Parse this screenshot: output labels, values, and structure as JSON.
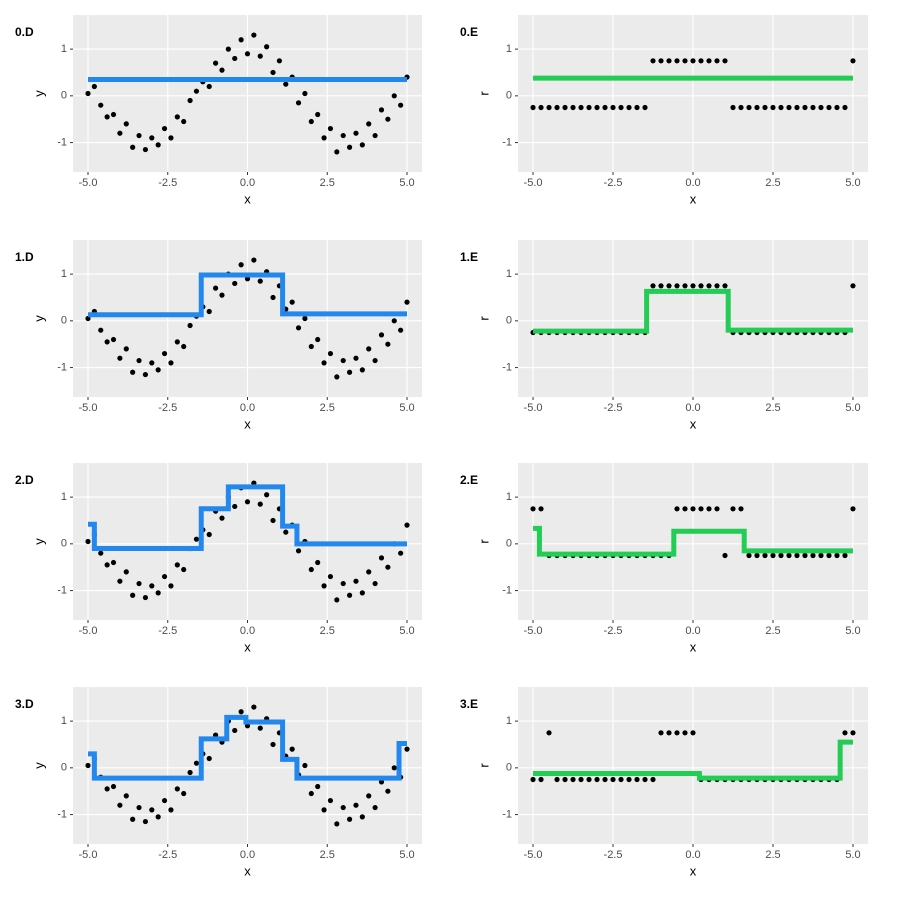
{
  "chart_data": [
    {
      "type": "scatter",
      "title": "0.D",
      "xlabel": "x",
      "ylabel": "y",
      "xlim": [
        -5.47,
        5.47
      ],
      "ylim": [
        -1.63,
        1.73
      ],
      "xticks": [
        {
          "value": -5,
          "label": "-5.0"
        },
        {
          "value": -2.5,
          "label": "-2.5"
        },
        {
          "value": 0,
          "label": "0.0"
        },
        {
          "value": 2.5,
          "label": "2.5"
        },
        {
          "value": 5,
          "label": "5.0"
        }
      ],
      "yticks": [
        -1,
        0,
        1
      ],
      "grid": true,
      "point_color": "#000000",
      "x": [
        -5,
        -4.8,
        -4.6,
        -4.4,
        -4.2,
        -4,
        -3.8,
        -3.6,
        -3.4,
        -3.2,
        -3,
        -2.8,
        -2.6,
        -2.4,
        -2.2,
        -2,
        -1.8,
        -1.6,
        -1.4,
        -1.2,
        -1,
        -0.8,
        -0.6,
        -0.4,
        -0.2,
        0,
        0.2,
        0.4,
        0.6,
        0.8,
        1,
        1.2,
        1.4,
        1.6,
        1.8,
        2,
        2.2,
        2.4,
        2.6,
        2.8,
        3,
        3.2,
        3.4,
        3.6,
        3.8,
        4,
        4.2,
        4.4,
        4.6,
        4.8,
        5
      ],
      "values": [
        0.05,
        0.2,
        -0.2,
        -0.45,
        -0.4,
        -0.8,
        -0.6,
        -1.1,
        -0.85,
        -1.15,
        -0.9,
        -1.05,
        -0.7,
        -0.9,
        -0.45,
        -0.55,
        -0.1,
        0.1,
        0.3,
        0.2,
        0.7,
        0.55,
        1.0,
        0.8,
        1.2,
        0.9,
        1.3,
        0.85,
        1.05,
        0.5,
        0.75,
        0.25,
        0.4,
        -0.15,
        0.05,
        -0.55,
        -0.4,
        -0.9,
        -0.7,
        -1.2,
        -0.85,
        -1.1,
        -0.8,
        -1.05,
        -0.6,
        -0.85,
        -0.3,
        -0.5,
        0.0,
        -0.2,
        0.4
      ],
      "line": {
        "color": "#2288ee",
        "x": [
          -5,
          5
        ],
        "values": [
          0.35,
          0.35
        ]
      }
    },
    {
      "type": "scatter",
      "title": "0.E",
      "xlabel": "x",
      "ylabel": "r",
      "xlim": [
        -5.47,
        5.47
      ],
      "ylim": [
        -1.63,
        1.73
      ],
      "xticks": [
        {
          "value": -5,
          "label": "-5.0"
        },
        {
          "value": -2.5,
          "label": "-2.5"
        },
        {
          "value": 0,
          "label": "0.0"
        },
        {
          "value": 2.5,
          "label": "2.5"
        },
        {
          "value": 5,
          "label": "5.0"
        }
      ],
      "yticks": [
        -1,
        0,
        1
      ],
      "grid": true,
      "point_color": "#000000",
      "x": [
        -5,
        -4.75,
        -4.5,
        -4.25,
        -4,
        -3.75,
        -3.5,
        -3.25,
        -3,
        -2.75,
        -2.5,
        -2.25,
        -2,
        -1.75,
        -1.5,
        -1.25,
        -1,
        -0.75,
        -0.5,
        -0.25,
        0,
        0.25,
        0.5,
        0.75,
        1,
        1.25,
        1.5,
        1.75,
        2,
        2.25,
        2.5,
        2.75,
        3,
        3.25,
        3.5,
        3.75,
        4,
        4.25,
        4.5,
        4.75,
        5
      ],
      "values": [
        -0.25,
        -0.25,
        -0.25,
        -0.25,
        -0.25,
        -0.25,
        -0.25,
        -0.25,
        -0.25,
        -0.25,
        -0.25,
        -0.25,
        -0.25,
        -0.25,
        -0.25,
        0.75,
        0.75,
        0.75,
        0.75,
        0.75,
        0.75,
        0.75,
        0.75,
        0.75,
        0.75,
        -0.25,
        -0.25,
        -0.25,
        -0.25,
        -0.25,
        -0.25,
        -0.25,
        -0.25,
        -0.25,
        -0.25,
        -0.25,
        -0.25,
        -0.25,
        -0.25,
        -0.25,
        0.75
      ],
      "line": {
        "color": "#22cc55",
        "x": [
          -5,
          5
        ],
        "values": [
          0.38,
          0.38
        ]
      }
    },
    {
      "type": "scatter",
      "title": "1.D",
      "xlabel": "x",
      "ylabel": "y",
      "xlim": [
        -5.47,
        5.47
      ],
      "ylim": [
        -1.63,
        1.73
      ],
      "xticks": [
        {
          "value": -5,
          "label": "-5.0"
        },
        {
          "value": -2.5,
          "label": "-2.5"
        },
        {
          "value": 0,
          "label": "0.0"
        },
        {
          "value": 2.5,
          "label": "2.5"
        },
        {
          "value": 5,
          "label": "5.0"
        }
      ],
      "yticks": [
        -1,
        0,
        1
      ],
      "grid": true,
      "point_color": "#000000",
      "x": [
        -5,
        -4.8,
        -4.6,
        -4.4,
        -4.2,
        -4,
        -3.8,
        -3.6,
        -3.4,
        -3.2,
        -3,
        -2.8,
        -2.6,
        -2.4,
        -2.2,
        -2,
        -1.8,
        -1.6,
        -1.4,
        -1.2,
        -1,
        -0.8,
        -0.6,
        -0.4,
        -0.2,
        0,
        0.2,
        0.4,
        0.6,
        0.8,
        1,
        1.2,
        1.4,
        1.6,
        1.8,
        2,
        2.2,
        2.4,
        2.6,
        2.8,
        3,
        3.2,
        3.4,
        3.6,
        3.8,
        4,
        4.2,
        4.4,
        4.6,
        4.8,
        5
      ],
      "values": [
        0.05,
        0.2,
        -0.2,
        -0.45,
        -0.4,
        -0.8,
        -0.6,
        -1.1,
        -0.85,
        -1.15,
        -0.9,
        -1.05,
        -0.7,
        -0.9,
        -0.45,
        -0.55,
        -0.1,
        0.1,
        0.3,
        0.2,
        0.7,
        0.55,
        1.0,
        0.8,
        1.2,
        0.9,
        1.3,
        0.85,
        1.05,
        0.5,
        0.75,
        0.25,
        0.4,
        -0.15,
        0.05,
        -0.55,
        -0.4,
        -0.9,
        -0.7,
        -1.2,
        -0.85,
        -1.1,
        -0.8,
        -1.05,
        -0.6,
        -0.85,
        -0.3,
        -0.5,
        0.0,
        -0.2,
        0.4
      ],
      "line": {
        "color": "#2288ee",
        "x": [
          -5,
          -1.45,
          -1.45,
          1.1,
          1.1,
          5
        ],
        "values": [
          0.13,
          0.13,
          0.98,
          0.98,
          0.15,
          0.15
        ]
      }
    },
    {
      "type": "scatter",
      "title": "1.E",
      "xlabel": "x",
      "ylabel": "r",
      "xlim": [
        -5.47,
        5.47
      ],
      "ylim": [
        -1.63,
        1.73
      ],
      "xticks": [
        {
          "value": -5,
          "label": "-5.0"
        },
        {
          "value": -2.5,
          "label": "-2.5"
        },
        {
          "value": 0,
          "label": "0.0"
        },
        {
          "value": 2.5,
          "label": "2.5"
        },
        {
          "value": 5,
          "label": "5.0"
        }
      ],
      "yticks": [
        -1,
        0,
        1
      ],
      "grid": true,
      "point_color": "#000000",
      "x": [
        -5,
        -4.75,
        -4.5,
        -4.25,
        -4,
        -3.75,
        -3.5,
        -3.25,
        -3,
        -2.75,
        -2.5,
        -2.25,
        -2,
        -1.75,
        -1.5,
        -1.25,
        -1,
        -0.75,
        -0.5,
        -0.25,
        0,
        0.25,
        0.5,
        0.75,
        1,
        1.25,
        1.5,
        1.75,
        2,
        2.25,
        2.5,
        2.75,
        3,
        3.25,
        3.5,
        3.75,
        4,
        4.25,
        4.5,
        4.75,
        5
      ],
      "values": [
        -0.25,
        -0.25,
        -0.25,
        -0.25,
        -0.25,
        -0.25,
        -0.25,
        -0.25,
        -0.25,
        -0.25,
        -0.25,
        -0.25,
        -0.25,
        -0.25,
        -0.25,
        0.75,
        0.75,
        0.75,
        0.75,
        0.75,
        0.75,
        0.75,
        0.75,
        0.75,
        0.75,
        -0.25,
        -0.25,
        -0.25,
        -0.25,
        -0.25,
        -0.25,
        -0.25,
        -0.25,
        -0.25,
        -0.25,
        -0.25,
        -0.25,
        -0.25,
        -0.25,
        -0.25,
        0.75
      ],
      "line": {
        "color": "#22cc55",
        "x": [
          -5,
          -1.45,
          -1.45,
          1.1,
          1.1,
          5
        ],
        "values": [
          -0.22,
          -0.22,
          0.63,
          0.63,
          -0.2,
          -0.2
        ]
      }
    },
    {
      "type": "scatter",
      "title": "2.D",
      "xlabel": "x",
      "ylabel": "y",
      "xlim": [
        -5.47,
        5.47
      ],
      "ylim": [
        -1.63,
        1.73
      ],
      "xticks": [
        {
          "value": -5,
          "label": "-5.0"
        },
        {
          "value": -2.5,
          "label": "-2.5"
        },
        {
          "value": 0,
          "label": "0.0"
        },
        {
          "value": 2.5,
          "label": "2.5"
        },
        {
          "value": 5,
          "label": "5.0"
        }
      ],
      "yticks": [
        -1,
        0,
        1
      ],
      "grid": true,
      "point_color": "#000000",
      "x": [
        -5,
        -4.8,
        -4.6,
        -4.4,
        -4.2,
        -4,
        -3.8,
        -3.6,
        -3.4,
        -3.2,
        -3,
        -2.8,
        -2.6,
        -2.4,
        -2.2,
        -2,
        -1.8,
        -1.6,
        -1.4,
        -1.2,
        -1,
        -0.8,
        -0.6,
        -0.4,
        -0.2,
        0,
        0.2,
        0.4,
        0.6,
        0.8,
        1,
        1.2,
        1.4,
        1.6,
        1.8,
        2,
        2.2,
        2.4,
        2.6,
        2.8,
        3,
        3.2,
        3.4,
        3.6,
        3.8,
        4,
        4.2,
        4.4,
        4.6,
        4.8,
        5
      ],
      "values": [
        0.05,
        0.2,
        -0.2,
        -0.45,
        -0.4,
        -0.8,
        -0.6,
        -1.1,
        -0.85,
        -1.15,
        -0.9,
        -1.05,
        -0.7,
        -0.9,
        -0.45,
        -0.55,
        -0.1,
        0.1,
        0.3,
        0.2,
        0.7,
        0.55,
        1.0,
        0.8,
        1.2,
        0.9,
        1.3,
        0.85,
        1.05,
        0.5,
        0.75,
        0.25,
        0.4,
        -0.15,
        0.05,
        -0.55,
        -0.4,
        -0.9,
        -0.7,
        -1.2,
        -0.85,
        -1.1,
        -0.8,
        -1.05,
        -0.6,
        -0.85,
        -0.3,
        -0.5,
        0.0,
        -0.2,
        0.4
      ],
      "line": {
        "color": "#2288ee",
        "x": [
          -5,
          -4.8,
          -4.8,
          -1.45,
          -1.45,
          -0.6,
          -0.6,
          1.1,
          1.1,
          1.55,
          1.55,
          5
        ],
        "values": [
          0.42,
          0.42,
          -0.1,
          -0.1,
          0.75,
          0.75,
          1.22,
          1.22,
          0.38,
          0.38,
          0.0,
          0.0
        ]
      }
    },
    {
      "type": "scatter",
      "title": "2.E",
      "xlabel": "x",
      "ylabel": "r",
      "xlim": [
        -5.47,
        5.47
      ],
      "ylim": [
        -1.63,
        1.73
      ],
      "xticks": [
        {
          "value": -5,
          "label": "-5.0"
        },
        {
          "value": -2.5,
          "label": "-2.5"
        },
        {
          "value": 0,
          "label": "0.0"
        },
        {
          "value": 2.5,
          "label": "2.5"
        },
        {
          "value": 5,
          "label": "5.0"
        }
      ],
      "yticks": [
        -1,
        0,
        1
      ],
      "grid": true,
      "point_color": "#000000",
      "x": [
        -5,
        -4.75,
        -4.5,
        -4.25,
        -4,
        -3.75,
        -3.5,
        -3.25,
        -3,
        -2.75,
        -2.5,
        -2.25,
        -2,
        -1.75,
        -1.5,
        -1.25,
        -1,
        -0.75,
        -0.5,
        -0.25,
        0,
        0.25,
        0.5,
        0.75,
        1,
        1.25,
        1.5,
        1.75,
        2,
        2.25,
        2.5,
        2.75,
        3,
        3.25,
        3.5,
        3.75,
        4,
        4.25,
        4.5,
        4.75,
        5
      ],
      "values": [
        0.75,
        0.75,
        -0.25,
        -0.25,
        -0.25,
        -0.25,
        -0.25,
        -0.25,
        -0.25,
        -0.25,
        -0.25,
        -0.25,
        -0.25,
        -0.25,
        -0.25,
        -0.25,
        -0.25,
        -0.25,
        0.75,
        0.75,
        0.75,
        0.75,
        0.75,
        0.75,
        -0.25,
        0.75,
        0.75,
        -0.25,
        -0.25,
        -0.25,
        -0.25,
        -0.25,
        -0.25,
        -0.25,
        -0.25,
        -0.25,
        -0.25,
        -0.25,
        -0.25,
        -0.25,
        0.75
      ],
      "line": {
        "color": "#22cc55",
        "x": [
          -5,
          -4.8,
          -4.8,
          -0.6,
          -0.6,
          1.6,
          1.6,
          5
        ],
        "values": [
          0.33,
          0.33,
          -0.22,
          -0.22,
          0.27,
          0.27,
          -0.15,
          -0.15
        ]
      }
    },
    {
      "type": "scatter",
      "title": "3.D",
      "xlabel": "x",
      "ylabel": "y",
      "xlim": [
        -5.47,
        5.47
      ],
      "ylim": [
        -1.63,
        1.73
      ],
      "xticks": [
        {
          "value": -5,
          "label": "-5.0"
        },
        {
          "value": -2.5,
          "label": "-2.5"
        },
        {
          "value": 0,
          "label": "0.0"
        },
        {
          "value": 2.5,
          "label": "2.5"
        },
        {
          "value": 5,
          "label": "5.0"
        }
      ],
      "yticks": [
        -1,
        0,
        1
      ],
      "grid": true,
      "point_color": "#000000",
      "x": [
        -5,
        -4.8,
        -4.6,
        -4.4,
        -4.2,
        -4,
        -3.8,
        -3.6,
        -3.4,
        -3.2,
        -3,
        -2.8,
        -2.6,
        -2.4,
        -2.2,
        -2,
        -1.8,
        -1.6,
        -1.4,
        -1.2,
        -1,
        -0.8,
        -0.6,
        -0.4,
        -0.2,
        0,
        0.2,
        0.4,
        0.6,
        0.8,
        1,
        1.2,
        1.4,
        1.6,
        1.8,
        2,
        2.2,
        2.4,
        2.6,
        2.8,
        3,
        3.2,
        3.4,
        3.6,
        3.8,
        4,
        4.2,
        4.4,
        4.6,
        4.8,
        5
      ],
      "values": [
        0.05,
        0.2,
        -0.2,
        -0.45,
        -0.4,
        -0.8,
        -0.6,
        -1.1,
        -0.85,
        -1.15,
        -0.9,
        -1.05,
        -0.7,
        -0.9,
        -0.45,
        -0.55,
        -0.1,
        0.1,
        0.3,
        0.2,
        0.7,
        0.55,
        1.0,
        0.8,
        1.2,
        0.9,
        1.3,
        0.85,
        1.05,
        0.5,
        0.75,
        0.25,
        0.4,
        -0.15,
        0.05,
        -0.55,
        -0.4,
        -0.9,
        -0.7,
        -1.2,
        -0.85,
        -1.1,
        -0.8,
        -1.05,
        -0.6,
        -0.85,
        -0.3,
        -0.5,
        0.0,
        -0.2,
        0.4
      ],
      "line": {
        "color": "#2288ee",
        "x": [
          -5,
          -4.8,
          -4.8,
          -1.45,
          -1.45,
          -0.65,
          -0.65,
          -0.05,
          -0.05,
          1.1,
          1.1,
          1.55,
          1.55,
          4.75,
          4.75,
          5
        ],
        "values": [
          0.3,
          0.3,
          -0.22,
          -0.22,
          0.62,
          0.62,
          1.08,
          1.08,
          0.98,
          0.98,
          0.18,
          0.18,
          -0.22,
          -0.22,
          0.52,
          0.52
        ]
      }
    },
    {
      "type": "scatter",
      "title": "3.E",
      "xlabel": "x",
      "ylabel": "r",
      "xlim": [
        -5.47,
        5.47
      ],
      "ylim": [
        -1.63,
        1.73
      ],
      "xticks": [
        {
          "value": -5,
          "label": "-5.0"
        },
        {
          "value": -2.5,
          "label": "-2.5"
        },
        {
          "value": 0,
          "label": "0.0"
        },
        {
          "value": 2.5,
          "label": "2.5"
        },
        {
          "value": 5,
          "label": "5.0"
        }
      ],
      "yticks": [
        -1,
        0,
        1
      ],
      "grid": true,
      "point_color": "#000000",
      "x": [
        -5,
        -4.75,
        -4.5,
        -4.25,
        -4,
        -3.75,
        -3.5,
        -3.25,
        -3,
        -2.75,
        -2.5,
        -2.25,
        -2,
        -1.75,
        -1.5,
        -1.25,
        -1,
        -0.75,
        -0.5,
        -0.25,
        0,
        0.25,
        0.5,
        0.75,
        1,
        1.25,
        1.5,
        1.75,
        2,
        2.25,
        2.5,
        2.75,
        3,
        3.25,
        3.5,
        3.75,
        4,
        4.25,
        4.5,
        4.75,
        5
      ],
      "values": [
        -0.25,
        -0.25,
        0.75,
        -0.25,
        -0.25,
        -0.25,
        -0.25,
        -0.25,
        -0.25,
        -0.25,
        -0.25,
        -0.25,
        -0.25,
        -0.25,
        -0.25,
        -0.25,
        0.75,
        0.75,
        0.75,
        0.75,
        0.75,
        -0.25,
        -0.25,
        -0.25,
        -0.25,
        -0.25,
        -0.25,
        -0.25,
        -0.25,
        -0.25,
        -0.25,
        -0.25,
        -0.25,
        -0.25,
        -0.25,
        -0.25,
        -0.25,
        -0.25,
        -0.25,
        0.75,
        0.75
      ],
      "line": {
        "color": "#22cc55",
        "x": [
          -5,
          0.2,
          0.2,
          4.6,
          4.6,
          5
        ],
        "values": [
          -0.12,
          -0.12,
          -0.22,
          -0.22,
          0.55,
          0.55
        ]
      }
    }
  ]
}
